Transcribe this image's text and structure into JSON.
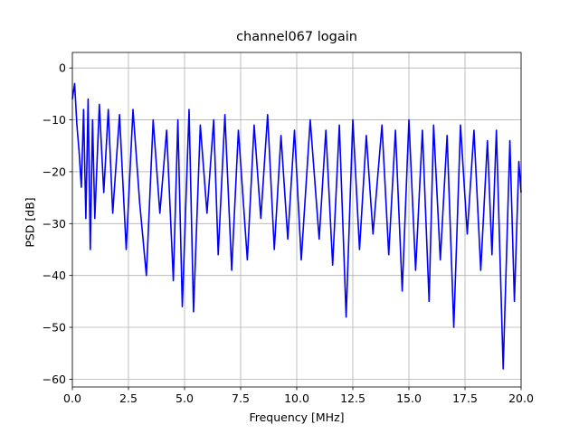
{
  "chart_data": {
    "type": "line",
    "title": "channel067 logain",
    "xlabel": "Frequency [MHz]",
    "ylabel": "PSD [dB]",
    "xlim": [
      0,
      20
    ],
    "ylim": [
      -61.5,
      3
    ],
    "x_ticks": [
      0,
      2.5,
      5,
      7.5,
      10,
      12.5,
      15,
      17.5,
      20
    ],
    "x_tick_labels": [
      "0.0",
      "2.5",
      "5.0",
      "7.5",
      "10.0",
      "12.5",
      "15.0",
      "17.5",
      "20.0"
    ],
    "y_ticks": [
      0,
      -10,
      -20,
      -30,
      -40,
      -50,
      -60
    ],
    "y_tick_labels": [
      "0",
      "−10",
      "−20",
      "−30",
      "−40",
      "−50",
      "−60"
    ],
    "grid": true,
    "legend": "none",
    "series": [
      {
        "color": "#0000ff",
        "x": [
          0.0,
          0.1,
          0.2,
          0.3,
          0.4,
          0.5,
          0.6,
          0.7,
          0.8,
          0.9,
          1.0,
          1.2,
          1.4,
          1.6,
          1.8,
          2.1,
          2.4,
          2.7,
          3.0,
          3.3,
          3.6,
          3.9,
          4.2,
          4.5,
          4.7,
          4.9,
          5.2,
          5.4,
          5.7,
          6.0,
          6.3,
          6.5,
          6.8,
          7.1,
          7.4,
          7.8,
          8.1,
          8.4,
          8.7,
          9.0,
          9.3,
          9.6,
          9.9,
          10.2,
          10.6,
          11.0,
          11.3,
          11.6,
          11.9,
          12.2,
          12.5,
          12.8,
          13.1,
          13.4,
          13.8,
          14.1,
          14.4,
          14.7,
          15.0,
          15.3,
          15.6,
          15.9,
          16.1,
          16.4,
          16.7,
          17.0,
          17.3,
          17.6,
          17.9,
          18.2,
          18.5,
          18.7,
          18.9,
          19.2,
          19.5,
          19.7,
          19.9,
          20.0
        ],
        "values": [
          -6,
          -3,
          -11,
          -16,
          -23,
          -8,
          -29,
          -6,
          -35,
          -10,
          -29,
          -7,
          -24,
          -8,
          -28,
          -9,
          -35,
          -8,
          -26,
          -40,
          -10,
          -28,
          -12,
          -41,
          -10,
          -46,
          -8,
          -47,
          -11,
          -28,
          -10,
          -36,
          -9,
          -39,
          -12,
          -37,
          -11,
          -29,
          -9,
          -35,
          -13,
          -33,
          -12,
          -37,
          -10,
          -33,
          -12,
          -38,
          -11,
          -48,
          -10,
          -35,
          -13,
          -32,
          -11,
          -36,
          -12,
          -43,
          -10,
          -39,
          -12,
          -45,
          -11,
          -37,
          -13,
          -50,
          -11,
          -32,
          -12,
          -39,
          -14,
          -36,
          -12,
          -58,
          -14,
          -45,
          -18,
          -24
        ]
      }
    ]
  }
}
